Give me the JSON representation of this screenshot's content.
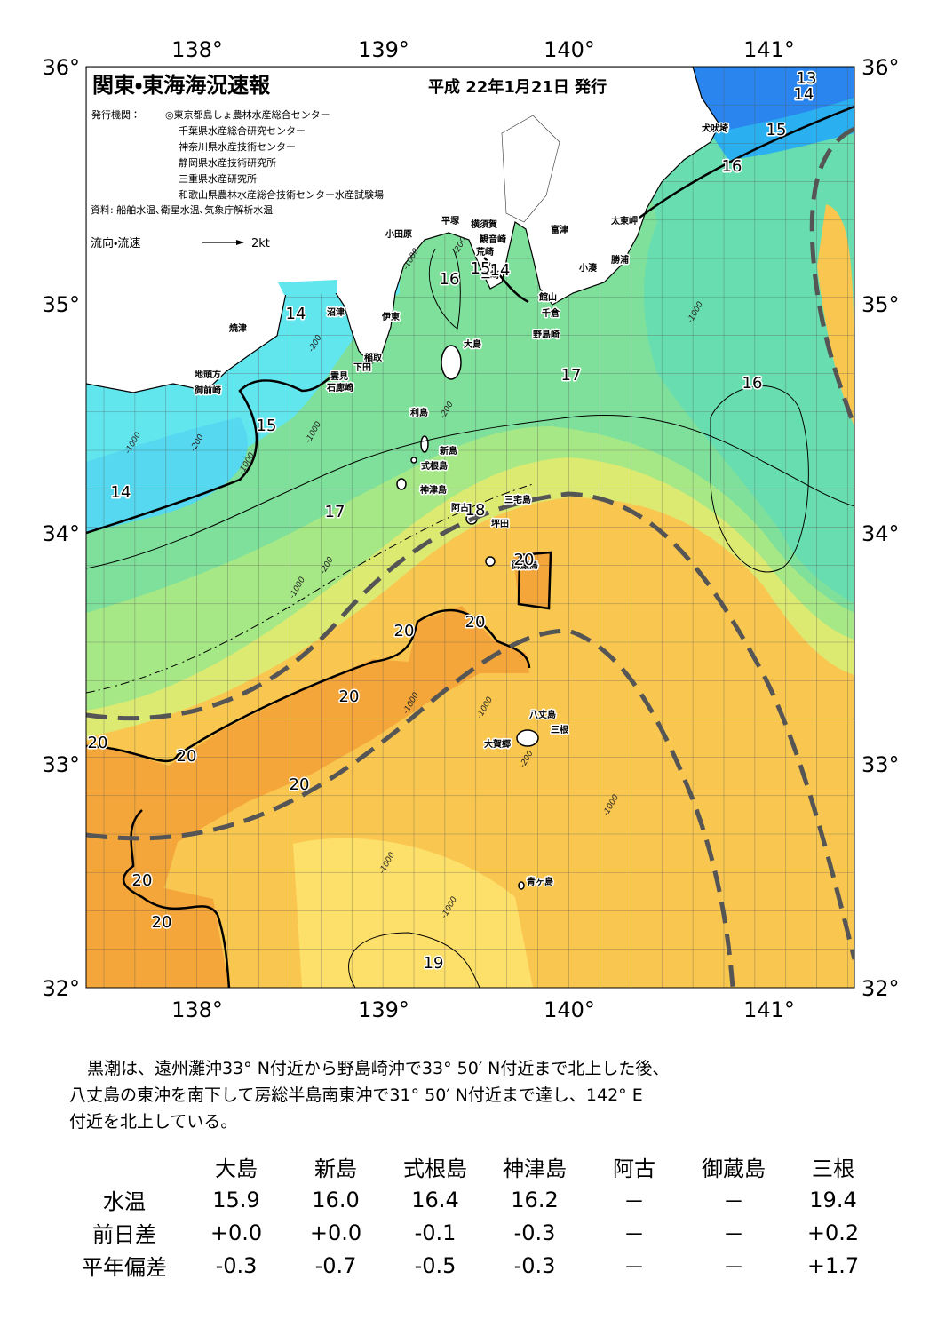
{
  "map": {
    "header": {
      "title": "関東・東海海況速報",
      "date": "平成 22年1月21日 発行",
      "publisher_label": "発行機関：",
      "publishers": [
        "◎東京都島しょ農林水産総合センター",
        "千葉県水産総合研究センター",
        "神奈川県水産技術センター",
        "静岡県水産技術研究所",
        "三重県水産研究所",
        "和歌山県農林水産総合技術センター水産試験場"
      ],
      "sources": "資料: 船舶水温､衛星水温､気象庁解析水温",
      "legend_label": "流向・流速",
      "legend_scale": "2kt"
    },
    "lon_labels": [
      "138°",
      "139°",
      "140°",
      "141°"
    ],
    "lat_labels": [
      "36°",
      "35°",
      "34°",
      "33°",
      "32°"
    ],
    "place_names": [
      "犬吠埼",
      "太東岬",
      "勝浦",
      "小湊",
      "富津",
      "横須賀",
      "平塚",
      "小田原",
      "観音崎",
      "荒崎",
      "三崎",
      "館山",
      "千倉",
      "野島崎",
      "大島",
      "沼津",
      "伊東",
      "焼津",
      "稲取",
      "下田",
      "雲見",
      "石廊崎",
      "地頭方",
      "御前崎",
      "利島",
      "新島",
      "式根島",
      "神津島",
      "三宅島",
      "阿古",
      "坪田",
      "御蔵島",
      "八丈島",
      "三根",
      "大賀郷",
      "青ヶ島"
    ],
    "contour_labels": [
      13,
      14,
      15,
      16,
      16,
      14,
      15,
      14,
      17,
      18,
      17,
      16,
      20,
      20,
      20,
      20,
      20,
      20,
      20,
      20,
      20,
      19,
      15,
      14
    ],
    "depth_labels": [
      -1000,
      -200,
      -200,
      -1000,
      -200,
      -1000,
      -1000,
      -200,
      -1000,
      -200,
      -1000,
      -1000,
      -1000,
      -200,
      -1000,
      -1000,
      -1000
    ]
  },
  "summary": {
    "lines": [
      "黒潮は、遠州灘沖33° N付近から野島崎沖で33° 50′ N付近まで北上した後、",
      "八丈島の東沖を南下して房総半島南東沖で31° 50′ N付近まで達し、142° E",
      "付近を北上している。"
    ]
  },
  "table": {
    "header": [
      "大島",
      "新島",
      "式根島",
      "神津島",
      "阿古",
      "御蔵島",
      "三根"
    ],
    "rows": [
      {
        "label": "水温",
        "values": [
          "15.9",
          "16.0",
          "16.4",
          "16.2",
          "－",
          "－",
          "19.4"
        ]
      },
      {
        "label": "前日差",
        "values": [
          "+0.0",
          "+0.0",
          "-0.1",
          "-0.3",
          "－",
          "－",
          "+0.2"
        ]
      },
      {
        "label": "平年偏差",
        "values": [
          "-0.3",
          "-0.7",
          "-0.5",
          "-0.3",
          "－",
          "－",
          "+1.7"
        ]
      }
    ]
  }
}
